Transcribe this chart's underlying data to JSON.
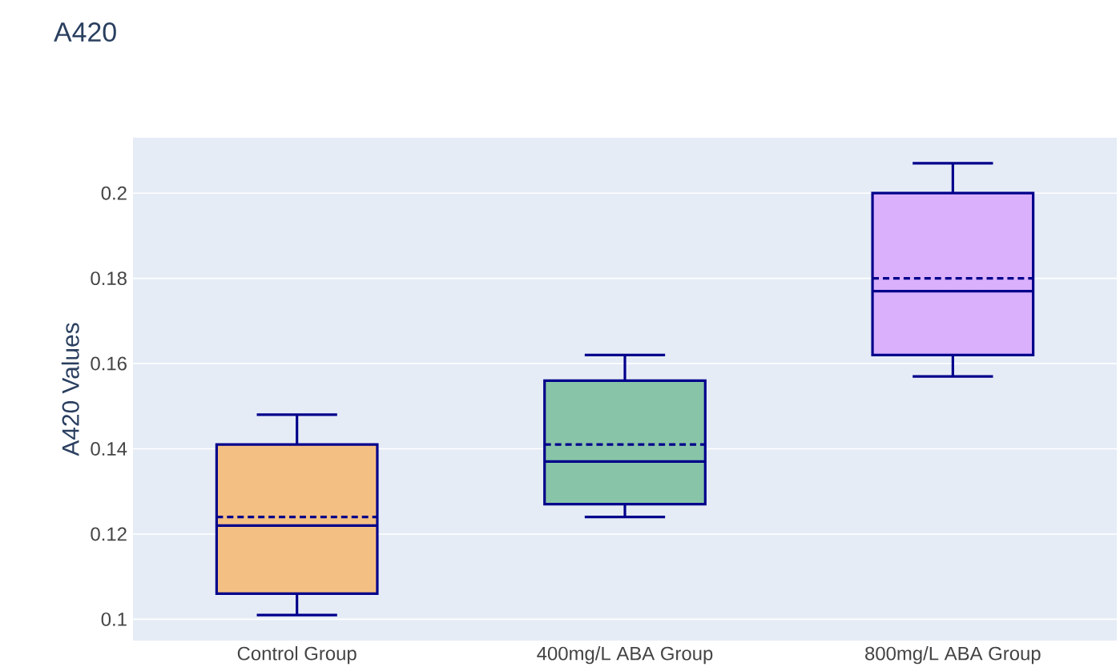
{
  "chart_data": {
    "type": "box",
    "title": "A420",
    "ylabel": "A420 Values",
    "categories": [
      "Control Group",
      "400mg/L ABA Group",
      "800mg/L ABA Group"
    ],
    "boxes": [
      {
        "low": 0.101,
        "q1": 0.106,
        "median": 0.122,
        "q3": 0.141,
        "high": 0.148,
        "mean": 0.124
      },
      {
        "low": 0.124,
        "q1": 0.127,
        "median": 0.137,
        "q3": 0.156,
        "high": 0.162,
        "mean": 0.141
      },
      {
        "low": 0.157,
        "q1": 0.162,
        "median": 0.177,
        "q3": 0.2,
        "high": 0.207,
        "mean": 0.18
      }
    ],
    "colors": [
      "#f4bf83",
      "#88c4a8",
      "#dab0fc"
    ],
    "ylim": [
      0.095,
      0.213
    ],
    "yticks": [
      0.1,
      0.12,
      0.14,
      0.16,
      0.18,
      0.2
    ],
    "grid": "y"
  }
}
